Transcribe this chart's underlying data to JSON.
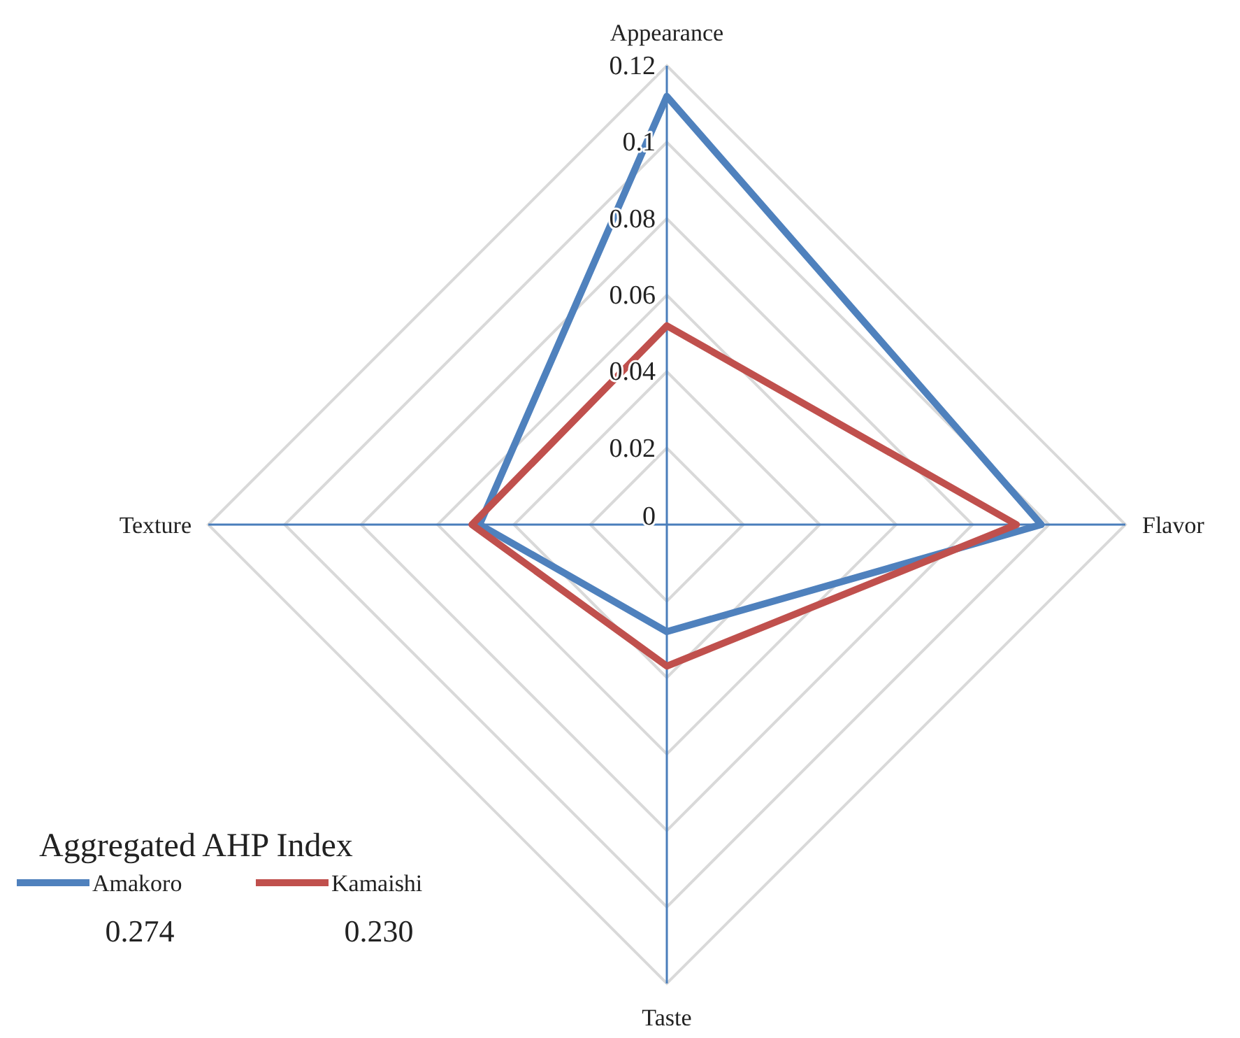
{
  "chart_data": {
    "type": "radar",
    "categories": [
      "Appearance",
      "Flavor",
      "Taste",
      "Texture"
    ],
    "series": [
      {
        "name": "Amakoro",
        "color": "#4f81bd",
        "values": [
          0.112,
          0.098,
          0.028,
          0.049
        ]
      },
      {
        "name": "Kamaishi",
        "color": "#c0504d",
        "values": [
          0.052,
          0.0915,
          0.037,
          0.051
        ]
      }
    ],
    "ylim": [
      0,
      0.12
    ],
    "yticks": [
      0,
      0.02,
      0.04,
      0.06,
      0.08,
      0.1,
      0.12
    ],
    "grid": true,
    "legend": "bottom left",
    "legend_title": "Aggregated AHP Index",
    "annotations": [
      "0.274",
      "0.230"
    ]
  }
}
